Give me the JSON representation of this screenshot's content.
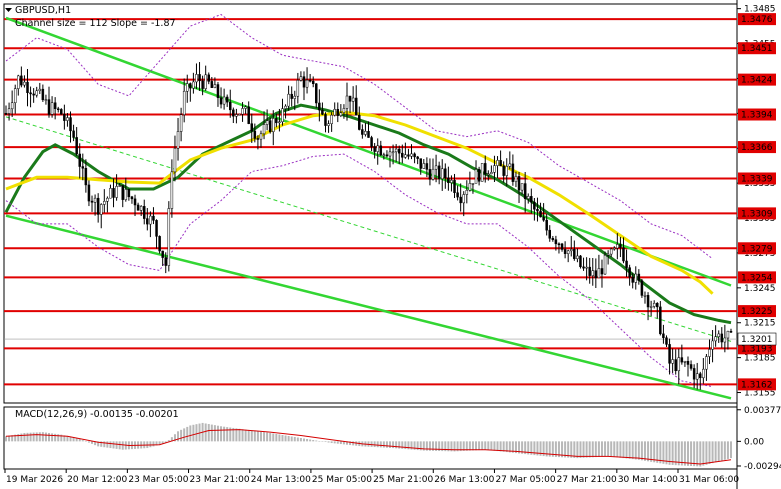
{
  "chart_data": [
    {
      "type": "candlestick",
      "title": "GBPUSD,H1",
      "subtitle": "Channel size = 112 Slope = -1.87",
      "ylim": [
        1.3146,
        1.3489
      ],
      "y_ticks": [
        "1.3485",
        "1.3455",
        "1.3425",
        "1.3395",
        "1.3365",
        "1.3335",
        "1.3305",
        "1.3275",
        "1.3245",
        "1.3215",
        "1.3185",
        "1.3155"
      ],
      "x_ticks": [
        "19 Mar 2026",
        "20 Mar 12:00",
        "23 Mar 05:00",
        "23 Mar 21:00",
        "24 Mar 13:00",
        "25 Mar 05:00",
        "25 Mar 21:00",
        "26 Mar 13:00",
        "27 Mar 05:00",
        "27 Mar 21:00",
        "30 Mar 14:00",
        "31 Mar 06:00"
      ],
      "current_price": "1.3201",
      "levels": [
        {
          "label": "1.3476",
          "value": 1.3476
        },
        {
          "label": "1.3451",
          "value": 1.3451
        },
        {
          "label": "1.3424",
          "value": 1.3424
        },
        {
          "label": "1.3394",
          "value": 1.3394
        },
        {
          "label": "1.3366",
          "value": 1.3366
        },
        {
          "label": "1.3339",
          "value": 1.3339
        },
        {
          "label": "1.3309",
          "value": 1.3309
        },
        {
          "label": "1.3279",
          "value": 1.3279
        },
        {
          "label": "1.3254",
          "value": 1.3254
        },
        {
          "label": "1.3225",
          "value": 1.3225
        },
        {
          "label": "1.3193",
          "value": 1.3193
        },
        {
          "label": "1.3162",
          "value": 1.3162
        }
      ],
      "price_keypoints": [
        [
          0,
          1.3395
        ],
        [
          4,
          1.3425
        ],
        [
          9,
          1.3415
        ],
        [
          14,
          1.34
        ],
        [
          18,
          1.3395
        ],
        [
          22,
          1.3375
        ],
        [
          26,
          1.333
        ],
        [
          30,
          1.3315
        ],
        [
          36,
          1.333
        ],
        [
          42,
          1.332
        ],
        [
          48,
          1.33
        ],
        [
          52,
          1.3265
        ],
        [
          54,
          1.335
        ],
        [
          58,
          1.341
        ],
        [
          62,
          1.3425
        ],
        [
          66,
          1.342
        ],
        [
          72,
          1.34
        ],
        [
          78,
          1.3395
        ],
        [
          82,
          1.3375
        ],
        [
          90,
          1.3395
        ],
        [
          96,
          1.3425
        ],
        [
          100,
          1.3415
        ],
        [
          104,
          1.3385
        ],
        [
          108,
          1.34
        ],
        [
          112,
          1.341
        ],
        [
          116,
          1.3375
        ],
        [
          122,
          1.3365
        ],
        [
          130,
          1.336
        ],
        [
          138,
          1.3345
        ],
        [
          144,
          1.334
        ],
        [
          148,
          1.3325
        ],
        [
          152,
          1.334
        ],
        [
          158,
          1.335
        ],
        [
          164,
          1.3345
        ],
        [
          170,
          1.332
        ],
        [
          176,
          1.3295
        ],
        [
          182,
          1.328
        ],
        [
          188,
          1.326
        ],
        [
          192,
          1.3255
        ],
        [
          196,
          1.327
        ],
        [
          200,
          1.328
        ],
        [
          204,
          1.3255
        ],
        [
          208,
          1.324
        ],
        [
          212,
          1.3222
        ],
        [
          216,
          1.318
        ],
        [
          222,
          1.3178
        ],
        [
          226,
          1.3165
        ],
        [
          230,
          1.3205
        ],
        [
          236,
          1.3201
        ]
      ],
      "series": [
        {
          "name": "",
          "color": "#1a7a1a",
          "values": [
            [
              0,
              1.331
            ],
            [
              6,
              1.334
            ],
            [
              12,
              1.3362
            ],
            [
              16,
              1.3368
            ],
            [
              22,
              1.336
            ],
            [
              30,
              1.3345
            ],
            [
              40,
              1.333
            ],
            [
              48,
              1.333
            ],
            [
              56,
              1.334
            ],
            [
              64,
              1.336
            ],
            [
              72,
              1.337
            ],
            [
              80,
              1.338
            ],
            [
              88,
              1.3395
            ],
            [
              96,
              1.3402
            ],
            [
              104,
              1.3398
            ],
            [
              112,
              1.3392
            ],
            [
              120,
              1.3385
            ],
            [
              128,
              1.3378
            ],
            [
              136,
              1.3368
            ],
            [
              144,
              1.336
            ],
            [
              152,
              1.3348
            ],
            [
              160,
              1.3338
            ],
            [
              168,
              1.3325
            ],
            [
              176,
              1.331
            ],
            [
              184,
              1.3295
            ],
            [
              192,
              1.328
            ],
            [
              200,
              1.3265
            ],
            [
              208,
              1.3248
            ],
            [
              216,
              1.3232
            ],
            [
              224,
              1.3222
            ],
            [
              232,
              1.3217
            ],
            [
              236,
              1.3215
            ]
          ]
        },
        {
          "name": "",
          "color": "#f0e000",
          "values": [
            [
              0,
              1.333
            ],
            [
              10,
              1.334
            ],
            [
              20,
              1.334
            ],
            [
              30,
              1.3338
            ],
            [
              40,
              1.3336
            ],
            [
              50,
              1.3335
            ],
            [
              60,
              1.3355
            ],
            [
              70,
              1.3365
            ],
            [
              80,
              1.3372
            ],
            [
              90,
              1.3385
            ],
            [
              100,
              1.3393
            ],
            [
              110,
              1.3396
            ],
            [
              120,
              1.3393
            ],
            [
              130,
              1.3385
            ],
            [
              140,
              1.3375
            ],
            [
              150,
              1.3365
            ],
            [
              160,
              1.3352
            ],
            [
              170,
              1.334
            ],
            [
              180,
              1.3325
            ],
            [
              190,
              1.3308
            ],
            [
              200,
              1.329
            ],
            [
              210,
              1.3272
            ],
            [
              220,
              1.326
            ],
            [
              226,
              1.325
            ],
            [
              230,
              1.324
            ]
          ]
        },
        {
          "name": "",
          "color": "#9a2fc2",
          "values": [
            [
              0,
              1.344
            ],
            [
              10,
              1.346
            ],
            [
              20,
              1.345
            ],
            [
              30,
              1.342
            ],
            [
              40,
              1.341
            ],
            [
              50,
              1.344
            ],
            [
              60,
              1.347
            ],
            [
              70,
              1.348
            ],
            [
              80,
              1.346
            ],
            [
              90,
              1.3445
            ],
            [
              100,
              1.344
            ],
            [
              110,
              1.3435
            ],
            [
              120,
              1.342
            ],
            [
              130,
              1.34
            ],
            [
              140,
              1.338
            ],
            [
              150,
              1.3375
            ],
            [
              160,
              1.338
            ],
            [
              170,
              1.337
            ],
            [
              180,
              1.335
            ],
            [
              190,
              1.3335
            ],
            [
              200,
              1.332
            ],
            [
              210,
              1.33
            ],
            [
              220,
              1.329
            ],
            [
              230,
              1.327
            ]
          ]
        },
        {
          "name": "",
          "color": "#9a2fc2",
          "values": [
            [
              0,
              1.332
            ],
            [
              10,
              1.33
            ],
            [
              20,
              1.33
            ],
            [
              30,
              1.328
            ],
            [
              40,
              1.3265
            ],
            [
              50,
              1.326
            ],
            [
              60,
              1.33
            ],
            [
              70,
              1.332
            ],
            [
              80,
              1.3345
            ],
            [
              90,
              1.335
            ],
            [
              100,
              1.3358
            ],
            [
              110,
              1.336
            ],
            [
              120,
              1.3345
            ],
            [
              130,
              1.3325
            ],
            [
              140,
              1.331
            ],
            [
              150,
              1.33
            ],
            [
              160,
              1.33
            ],
            [
              170,
              1.328
            ],
            [
              180,
              1.3255
            ],
            [
              190,
              1.3235
            ],
            [
              200,
              1.321
            ],
            [
              210,
              1.3185
            ],
            [
              220,
              1.3165
            ],
            [
              230,
              1.316
            ]
          ]
        }
      ],
      "channel": {
        "color": "#33d633",
        "upper": [
          [
            0,
            1.3477
          ],
          [
            236,
            1.3247
          ]
        ],
        "lower": [
          [
            0,
            1.3307
          ],
          [
            236,
            1.315
          ]
        ],
        "middle": [
          [
            0,
            1.3392
          ],
          [
            236,
            1.3199
          ]
        ]
      }
    },
    {
      "type": "macd",
      "title": "MACD(12,26,9) -0.00135 -0.00201",
      "ylim": [
        -0.0033,
        0.0041
      ],
      "y_ticks": [
        "0.00377",
        "0.00",
        "-0.00294"
      ],
      "histogram_keypoints": [
        [
          0,
          0.0006
        ],
        [
          6,
          0.001
        ],
        [
          12,
          0.0011
        ],
        [
          18,
          0.0008
        ],
        [
          24,
          0.0003
        ],
        [
          30,
          -0.0006
        ],
        [
          38,
          -0.001
        ],
        [
          46,
          -0.0008
        ],
        [
          52,
          -0.0002
        ],
        [
          56,
          0.0012
        ],
        [
          60,
          0.0019
        ],
        [
          64,
          0.0022
        ],
        [
          70,
          0.0018
        ],
        [
          78,
          0.0014
        ],
        [
          86,
          0.001
        ],
        [
          96,
          0.0004
        ],
        [
          106,
          -0.0002
        ],
        [
          116,
          -0.0006
        ],
        [
          126,
          -0.0008
        ],
        [
          136,
          -0.0011
        ],
        [
          146,
          -0.0012
        ],
        [
          156,
          -0.001
        ],
        [
          166,
          -0.0014
        ],
        [
          176,
          -0.0018
        ],
        [
          186,
          -0.002
        ],
        [
          196,
          -0.0018
        ],
        [
          206,
          -0.0022
        ],
        [
          216,
          -0.0028
        ],
        [
          226,
          -0.003
        ],
        [
          236,
          -0.002
        ]
      ],
      "signal": {
        "name": "",
        "color": "#d40000",
        "values": [
          [
            0,
            0.0006
          ],
          [
            10,
            0.0008
          ],
          [
            20,
            0.0006
          ],
          [
            30,
            -0.0001
          ],
          [
            40,
            -0.0005
          ],
          [
            50,
            -0.0004
          ],
          [
            58,
            0.0005
          ],
          [
            66,
            0.0013
          ],
          [
            76,
            0.0014
          ],
          [
            86,
            0.0011
          ],
          [
            96,
            0.0007
          ],
          [
            106,
            0.0002
          ],
          [
            116,
            -0.0003
          ],
          [
            126,
            -0.0006
          ],
          [
            136,
            -0.0009
          ],
          [
            146,
            -0.001
          ],
          [
            156,
            -0.001
          ],
          [
            166,
            -0.0012
          ],
          [
            176,
            -0.0015
          ],
          [
            186,
            -0.0018
          ],
          [
            196,
            -0.0018
          ],
          [
            206,
            -0.002
          ],
          [
            216,
            -0.0024
          ],
          [
            226,
            -0.0027
          ],
          [
            236,
            -0.0022
          ]
        ]
      }
    }
  ]
}
